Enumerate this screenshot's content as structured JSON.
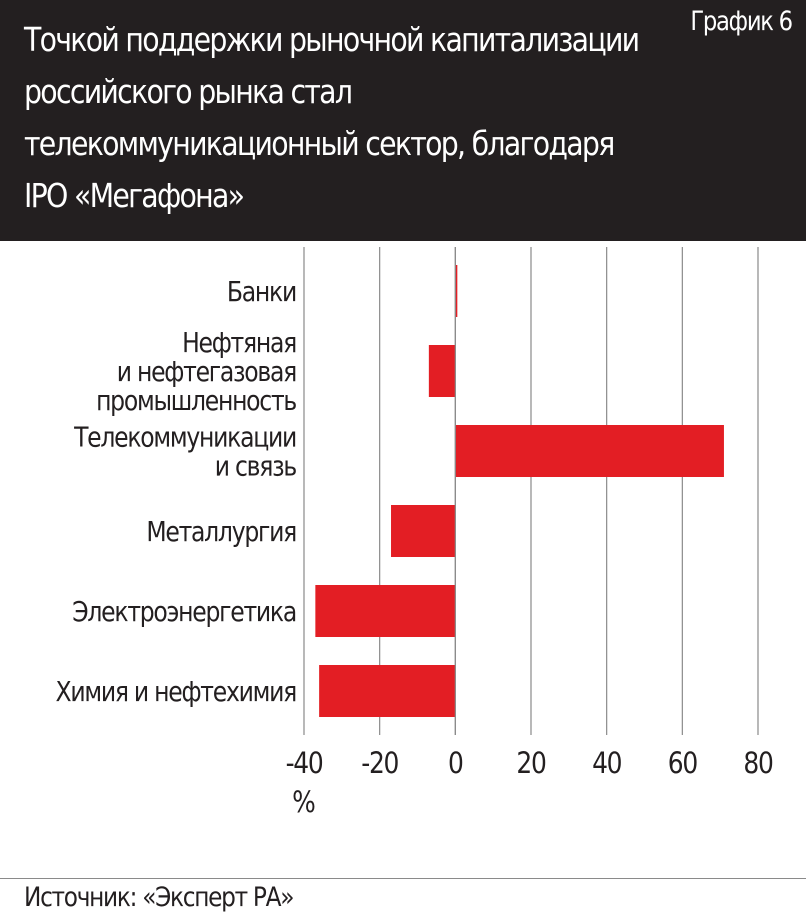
{
  "header": {
    "title": "Точкой поддержки рыночной капитализации российского рынка стал телекоммуникационный сектор, благодаря IPO «Мегафона»",
    "tag": "График 6"
  },
  "footer": {
    "source": "Источник: «Эксперт РА»"
  },
  "colors": {
    "bar": "#e31e24",
    "header_bg": "#231f20",
    "grid": "#8a8a8a"
  },
  "chart_data": {
    "type": "bar",
    "orientation": "horizontal",
    "categories": [
      [
        "Банки"
      ],
      [
        "Нефтяная",
        "и нефтегазовая",
        "промышленность"
      ],
      [
        "Телекоммуникации",
        "и связь"
      ],
      [
        "Металлургия"
      ],
      [
        "Электроэнергетика"
      ],
      [
        "Химия и нефтехимия"
      ]
    ],
    "values": [
      0.5,
      -7,
      71,
      -17,
      -37,
      -36
    ],
    "xlabel": "%",
    "xlim": [
      -40,
      80
    ],
    "xticks": [
      -40,
      -20,
      0,
      20,
      40,
      60,
      80
    ],
    "grid": true,
    "legend": "none"
  }
}
